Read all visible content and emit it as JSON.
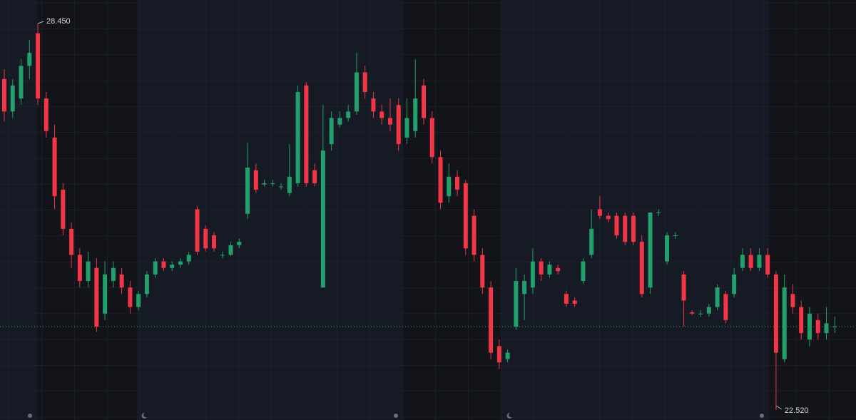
{
  "chart_data": {
    "type": "candlestick",
    "up_color": "#22a06b",
    "down_color": "#f23645",
    "high_label": {
      "value": 28.45,
      "label": "28.450"
    },
    "low_label": {
      "value": 22.52,
      "label": "22.520"
    },
    "ohlc": [
      [
        27.6,
        27.75,
        26.95,
        27.1
      ],
      [
        27.1,
        27.6,
        27.0,
        27.5
      ],
      [
        27.3,
        27.9,
        27.2,
        27.8
      ],
      [
        27.8,
        28.2,
        27.6,
        28.0
      ],
      [
        28.3,
        28.45,
        27.2,
        27.3
      ],
      [
        27.3,
        27.4,
        26.7,
        26.8
      ],
      [
        26.7,
        26.9,
        25.6,
        25.8
      ],
      [
        25.9,
        26.0,
        25.2,
        25.3
      ],
      [
        25.3,
        25.4,
        24.7,
        24.9
      ],
      [
        24.9,
        25.0,
        24.4,
        24.5
      ],
      [
        24.5,
        24.95,
        24.4,
        24.8
      ],
      [
        24.7,
        24.85,
        23.72,
        23.8
      ],
      [
        24.0,
        24.8,
        23.9,
        24.6
      ],
      [
        24.5,
        24.8,
        24.4,
        24.7
      ],
      [
        24.6,
        24.7,
        24.3,
        24.4
      ],
      [
        24.4,
        24.5,
        24.0,
        24.1
      ],
      [
        24.1,
        24.35,
        24.05,
        24.3
      ],
      [
        24.3,
        24.65,
        24.25,
        24.6
      ],
      [
        24.6,
        24.85,
        24.55,
        24.8
      ],
      [
        24.8,
        24.85,
        24.65,
        24.7
      ],
      [
        24.7,
        24.8,
        24.65,
        24.75
      ],
      [
        24.75,
        24.85,
        24.7,
        24.8
      ],
      [
        24.8,
        24.95,
        24.75,
        24.9
      ],
      [
        25.6,
        25.65,
        24.9,
        24.95
      ],
      [
        25.3,
        25.35,
        24.95,
        25.0
      ],
      [
        25.2,
        25.25,
        24.95,
        25.0
      ],
      [
        24.9,
        24.95,
        24.85,
        24.9
      ],
      [
        24.9,
        25.1,
        24.88,
        25.05
      ],
      [
        25.05,
        25.15,
        25.0,
        25.1
      ],
      [
        25.53,
        26.62,
        25.45,
        26.24
      ],
      [
        26.2,
        26.3,
        25.85,
        25.9
      ],
      [
        25.98,
        26.05,
        25.95,
        26.0
      ],
      [
        26.0,
        26.05,
        25.95,
        26.0
      ],
      [
        25.95,
        26.0,
        25.9,
        25.95
      ],
      [
        25.85,
        26.6,
        25.8,
        26.1
      ],
      [
        26.0,
        27.5,
        25.95,
        27.4
      ],
      [
        27.5,
        27.55,
        25.95,
        26.0
      ],
      [
        26.2,
        26.3,
        25.95,
        26.0
      ],
      [
        24.4,
        27.2,
        24.4,
        26.5
      ],
      [
        26.6,
        27.1,
        26.5,
        27.0
      ],
      [
        26.9,
        27.1,
        26.85,
        27.0
      ],
      [
        27.0,
        27.2,
        26.95,
        27.1
      ],
      [
        27.1,
        28.0,
        27.05,
        27.7
      ],
      [
        27.7,
        27.8,
        27.3,
        27.4
      ],
      [
        27.3,
        27.4,
        27.0,
        27.1
      ],
      [
        27.1,
        27.2,
        26.9,
        27.0
      ],
      [
        27.0,
        27.3,
        26.8,
        26.9
      ],
      [
        27.2,
        27.3,
        26.5,
        26.6
      ],
      [
        26.7,
        27.3,
        26.6,
        27.0
      ],
      [
        26.8,
        27.9,
        26.7,
        27.3
      ],
      [
        27.5,
        27.6,
        26.9,
        27.0
      ],
      [
        27.0,
        27.1,
        26.3,
        26.4
      ],
      [
        26.4,
        26.5,
        25.6,
        25.7
      ],
      [
        25.8,
        26.3,
        25.7,
        26.1
      ],
      [
        26.1,
        26.2,
        25.8,
        25.9
      ],
      [
        26.0,
        26.05,
        24.9,
        25.0
      ],
      [
        25.5,
        25.6,
        24.8,
        24.9
      ],
      [
        24.9,
        25.0,
        24.3,
        24.4
      ],
      [
        24.4,
        24.5,
        23.3,
        23.4
      ],
      [
        23.5,
        23.6,
        23.15,
        23.25
      ],
      [
        23.3,
        23.45,
        23.25,
        23.4
      ],
      [
        23.8,
        24.7,
        23.75,
        24.5
      ],
      [
        24.3,
        24.6,
        23.9,
        24.5
      ],
      [
        24.4,
        25.0,
        24.3,
        24.8
      ],
      [
        24.8,
        24.85,
        24.5,
        24.6
      ],
      [
        24.6,
        24.8,
        24.55,
        24.75
      ],
      [
        24.7,
        24.75,
        24.6,
        24.65
      ],
      [
        24.3,
        24.35,
        24.1,
        24.15
      ],
      [
        24.2,
        24.25,
        24.1,
        24.15
      ],
      [
        24.5,
        24.85,
        24.45,
        24.8
      ],
      [
        24.9,
        25.6,
        24.85,
        25.3
      ],
      [
        25.6,
        25.8,
        25.45,
        25.5
      ],
      [
        25.5,
        25.55,
        25.4,
        25.45
      ],
      [
        25.5,
        25.55,
        25.15,
        25.2
      ],
      [
        25.5,
        25.55,
        25.05,
        25.1
      ],
      [
        25.5,
        25.55,
        25.05,
        25.1
      ],
      [
        25.1,
        25.2,
        24.25,
        24.3
      ],
      [
        24.4,
        25.55,
        24.3,
        25.55
      ],
      [
        25.55,
        25.6,
        25.5,
        25.55
      ],
      [
        24.8,
        25.25,
        24.75,
        25.2
      ],
      [
        25.2,
        25.25,
        25.15,
        25.2
      ],
      [
        24.6,
        24.65,
        23.8,
        24.2
      ],
      [
        24.02,
        24.05,
        23.98,
        24.0
      ],
      [
        24.0,
        24.05,
        23.95,
        24.0
      ],
      [
        24.0,
        24.15,
        23.95,
        24.1
      ],
      [
        24.1,
        24.45,
        24.05,
        24.4
      ],
      [
        24.3,
        24.35,
        23.85,
        23.9
      ],
      [
        24.3,
        24.7,
        24.25,
        24.6
      ],
      [
        24.7,
        25.0,
        24.65,
        24.9
      ],
      [
        24.9,
        25.0,
        24.65,
        24.7
      ],
      [
        24.7,
        25.0,
        24.65,
        24.9
      ],
      [
        24.9,
        25.0,
        24.55,
        24.6
      ],
      [
        24.6,
        24.65,
        22.52,
        23.4
      ],
      [
        23.3,
        24.6,
        23.25,
        24.4
      ],
      [
        24.3,
        24.45,
        24.0,
        24.1
      ],
      [
        24.1,
        24.2,
        23.6,
        23.7
      ],
      [
        23.6,
        24.1,
        23.5,
        24.0
      ],
      [
        23.9,
        24.0,
        23.6,
        23.7
      ],
      [
        23.7,
        24.1,
        23.6,
        23.85
      ],
      [
        23.8,
        23.95,
        23.7,
        23.8
      ]
    ]
  }
}
